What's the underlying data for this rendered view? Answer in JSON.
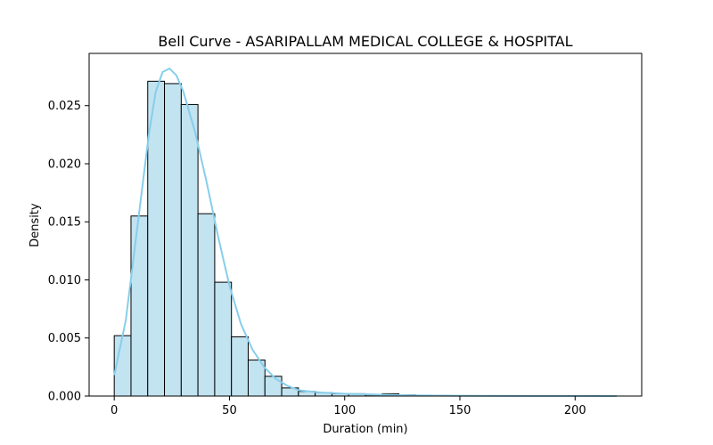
{
  "chart_data": {
    "type": "histogram",
    "title": "Bell Curve - ASARIPALLAM MEDICAL COLLEGE & HOSPITAL",
    "xlabel": "Duration (min)",
    "ylabel": "Density",
    "xlim": [
      -10.9,
      228.9
    ],
    "ylim": [
      0,
      0.0295
    ],
    "x_ticks": [
      0,
      50,
      100,
      150,
      200
    ],
    "y_ticks": [
      0.0,
      0.005,
      0.01,
      0.015,
      0.02,
      0.025
    ],
    "y_tick_labels": [
      "0.000",
      "0.005",
      "0.010",
      "0.015",
      "0.020",
      "0.025"
    ],
    "bin_edges": [
      0,
      7.27,
      14.53,
      21.8,
      29.07,
      36.33,
      43.6,
      50.87,
      58.13,
      65.4,
      72.67,
      79.93,
      87.2,
      94.47,
      101.73,
      109.0,
      116.27,
      123.53,
      130.8,
      138.07,
      145.33,
      152.6,
      159.87,
      167.13,
      174.4,
      181.67,
      188.93,
      196.2,
      203.47,
      210.73,
      218.0
    ],
    "values": [
      0.0052,
      0.0155,
      0.0271,
      0.0269,
      0.0251,
      0.0157,
      0.0098,
      0.0051,
      0.0031,
      0.0017,
      0.0007,
      0.0004,
      0.0003,
      0.0002,
      0.0002,
      0.0001,
      0.0002,
      0.0001,
      5e-05,
      5e-05,
      3e-05,
      3e-05,
      2e-05,
      2e-05,
      1e-05,
      1e-05,
      1e-05,
      1e-05,
      1e-05,
      1e-05
    ],
    "bar_color": "#c2e3f0",
    "bar_edge_color": "#000000",
    "kde": {
      "color": "#87ceeb",
      "x": [
        0,
        5,
        10,
        15,
        18,
        21,
        24,
        27,
        30,
        35,
        40,
        45,
        50,
        55,
        60,
        65,
        70,
        75,
        80,
        90,
        100,
        110,
        120,
        130,
        140,
        160,
        180,
        200,
        218
      ],
      "y": [
        0.0018,
        0.0065,
        0.0145,
        0.0225,
        0.0262,
        0.0279,
        0.0282,
        0.0276,
        0.0262,
        0.0228,
        0.0185,
        0.0138,
        0.0095,
        0.0062,
        0.004,
        0.0025,
        0.0015,
        0.0009,
        0.0005,
        0.0003,
        0.0002,
        0.00015,
        0.0001,
        6e-05,
        4e-05,
        2e-05,
        1e-05,
        1e-05,
        0.0
      ]
    },
    "grid": false,
    "legend": "none"
  }
}
